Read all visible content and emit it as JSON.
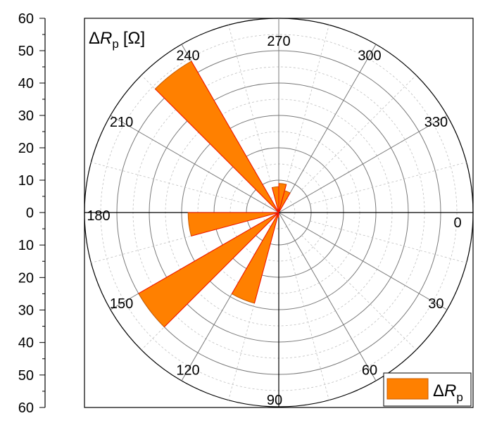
{
  "chart_data": {
    "type": "polar-bar",
    "title": "ΔR_p [Ω]",
    "title_parts": {
      "delta": "Δ",
      "symbol": "R",
      "subscript": "p",
      "unit": "[Ω]"
    },
    "angle_direction": "clockwise",
    "angle_zero": "right",
    "angle_ticks": [
      0,
      30,
      60,
      90,
      120,
      150,
      180,
      210,
      240,
      270,
      300,
      330
    ],
    "r_axis": {
      "range": [
        0,
        60
      ],
      "mirrored": true,
      "tick_labels_top": [
        "60",
        "50",
        "40",
        "30",
        "20",
        "10",
        "0"
      ],
      "tick_labels_bottom": [
        "10",
        "20",
        "30",
        "40",
        "50",
        "60"
      ],
      "tick_values_top": [
        60,
        50,
        40,
        30,
        20,
        10,
        0
      ],
      "tick_values_bottom": [
        10,
        20,
        30,
        40,
        50,
        60
      ]
    },
    "grid": {
      "major_every": 10,
      "minor_every": 5
    },
    "legend": {
      "position": "bottom-right",
      "entry": "ΔR_p",
      "parts": {
        "delta": "Δ",
        "symbol": "R",
        "subscript": "p"
      }
    },
    "colors": {
      "fill": "#ff8000",
      "stroke": "#c85a00",
      "radial_line": "#ff0000",
      "grid_major": "#7a7a7a",
      "grid_minor": "#c0c0c0"
    },
    "series": [
      {
        "name": "ΔR_p",
        "bins": [
          {
            "angle_start": 0,
            "angle_end": 15,
            "value": 0
          },
          {
            "angle_start": 15,
            "angle_end": 30,
            "value": 0
          },
          {
            "angle_start": 30,
            "angle_end": 45,
            "value": 0
          },
          {
            "angle_start": 45,
            "angle_end": 60,
            "value": 0
          },
          {
            "angle_start": 60,
            "angle_end": 75,
            "value": 0
          },
          {
            "angle_start": 75,
            "angle_end": 90,
            "value": 0
          },
          {
            "angle_start": 90,
            "angle_end": 105,
            "value": 1.5
          },
          {
            "angle_start": 105,
            "angle_end": 120,
            "value": 29
          },
          {
            "angle_start": 120,
            "angle_end": 135,
            "value": 0
          },
          {
            "angle_start": 135,
            "angle_end": 150,
            "value": 50
          },
          {
            "angle_start": 150,
            "angle_end": 165,
            "value": 0
          },
          {
            "angle_start": 165,
            "angle_end": 180,
            "value": 28
          },
          {
            "angle_start": 180,
            "angle_end": 195,
            "value": 0
          },
          {
            "angle_start": 195,
            "angle_end": 210,
            "value": 0
          },
          {
            "angle_start": 210,
            "angle_end": 225,
            "value": 0
          },
          {
            "angle_start": 225,
            "angle_end": 240,
            "value": 54
          },
          {
            "angle_start": 240,
            "angle_end": 255,
            "value": 0
          },
          {
            "angle_start": 255,
            "angle_end": 270,
            "value": 8
          },
          {
            "angle_start": 270,
            "angle_end": 285,
            "value": 9
          },
          {
            "angle_start": 285,
            "angle_end": 300,
            "value": 7
          },
          {
            "angle_start": 300,
            "angle_end": 315,
            "value": 0
          },
          {
            "angle_start": 315,
            "angle_end": 330,
            "value": 0
          },
          {
            "angle_start": 330,
            "angle_end": 345,
            "value": 0
          },
          {
            "angle_start": 345,
            "angle_end": 360,
            "value": 0
          }
        ]
      }
    ]
  }
}
